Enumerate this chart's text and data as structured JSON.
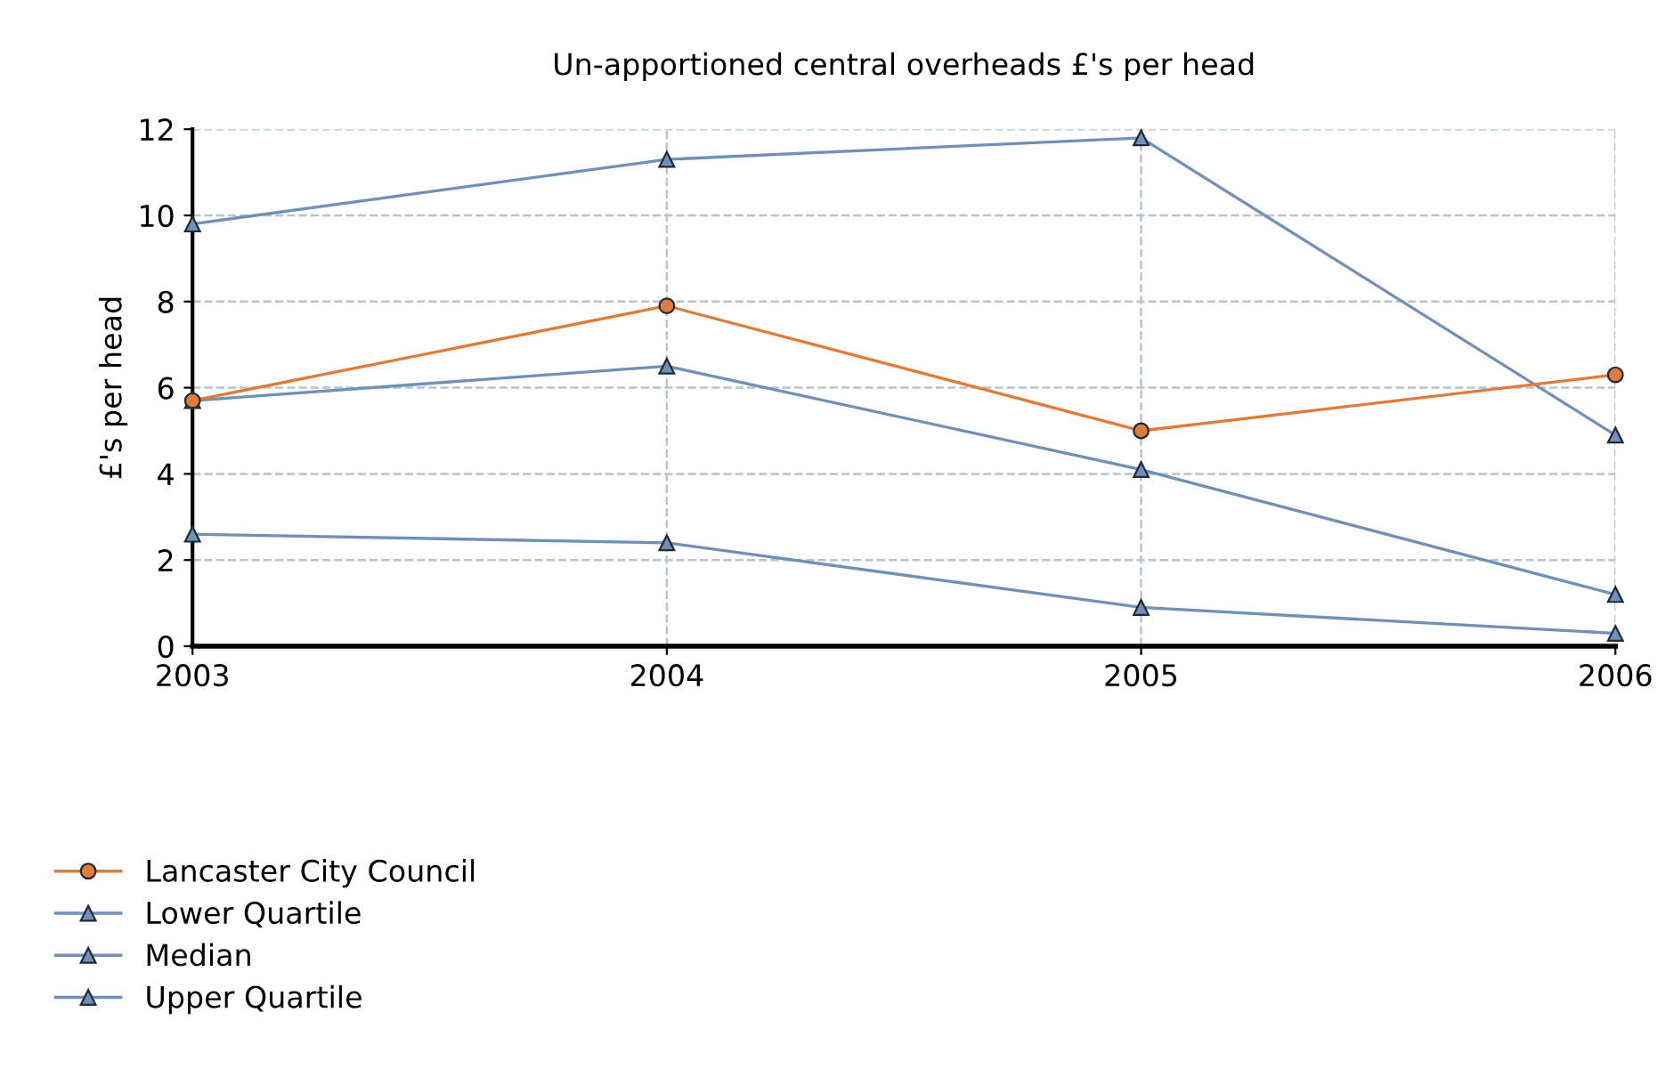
{
  "chart_data": {
    "type": "line",
    "title": "Un-apportioned central overheads £'s per head",
    "ylabel": "£'s per head",
    "x": [
      2003,
      2004,
      2005,
      2006
    ],
    "xlim": [
      2003,
      2006
    ],
    "xticks": [
      2003,
      2004,
      2005,
      2006
    ],
    "ylim": [
      0,
      12
    ],
    "yticks": [
      0,
      2,
      4,
      6,
      8,
      10,
      12
    ],
    "grid": true,
    "legend": "bottom left",
    "line_style": "solid",
    "series": [
      {
        "name": "Lancaster City Council",
        "color": "#e07b39",
        "marker": "circle",
        "values": [
          5.7,
          7.9,
          5.0,
          6.3
        ]
      },
      {
        "name": "Lower Quartile",
        "color": "#7090b8",
        "marker": "triangle",
        "values": [
          2.6,
          2.4,
          0.9,
          0.3
        ]
      },
      {
        "name": "Median",
        "color": "#7090b8",
        "marker": "triangle",
        "values": [
          5.7,
          6.5,
          4.1,
          1.2
        ]
      },
      {
        "name": "Upper Quartile",
        "color": "#7090b8",
        "marker": "triangle",
        "values": [
          9.8,
          11.3,
          11.8,
          4.9
        ]
      }
    ]
  }
}
